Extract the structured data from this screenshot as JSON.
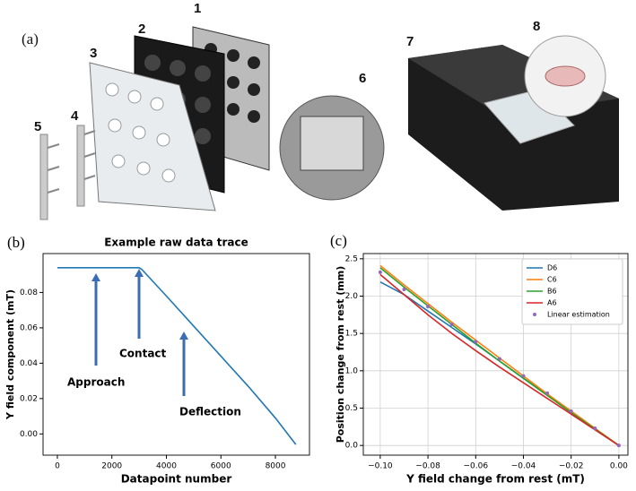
{
  "figure": {
    "panel_a": {
      "label": "(a)",
      "callouts": [
        "1",
        "2",
        "3",
        "4",
        "5",
        "6",
        "7",
        "8"
      ]
    }
  },
  "chart_data": [
    {
      "type": "line",
      "panel_label": "(b)",
      "title": "Example raw data trace",
      "x_label": "Datapoint number",
      "y_label": "Y field component (mT)",
      "x": [
        0,
        3000,
        3100,
        4000,
        5000,
        6000,
        7000,
        8000,
        8750
      ],
      "series": [
        {
          "name": null,
          "color": "#1f77b4",
          "values": [
            0.094,
            0.094,
            0.093,
            0.078,
            0.061,
            0.044,
            0.027,
            0.009,
            -0.006
          ]
        }
      ],
      "xlim": [
        -525,
        9250
      ],
      "ylim": [
        -0.012,
        0.102
      ],
      "xticks": [
        0,
        2000,
        4000,
        6000,
        8000
      ],
      "yticks": [
        {
          "value": 0,
          "label": "0.00"
        },
        0.02,
        0.04,
        0.06,
        0.08
      ],
      "grid": false,
      "annotations": [
        {
          "text": "Approach"
        },
        {
          "text": "Contact"
        },
        {
          "text": "Deflection"
        }
      ]
    },
    {
      "type": "line",
      "panel_label": "(c)",
      "x_label": "Y field change from rest (mT)",
      "y_label": "Position change from rest (mm)",
      "x": [
        -0.1,
        -0.09,
        -0.08,
        -0.07,
        -0.06,
        -0.05,
        -0.04,
        -0.03,
        -0.02,
        -0.01,
        0
      ],
      "series": [
        {
          "name": "D6",
          "color": "#1f77b4",
          "values": [
            2.19,
            2.02,
            1.8,
            1.58,
            1.36,
            1.13,
            0.9,
            0.68,
            0.45,
            0.22,
            0
          ]
        },
        {
          "name": "C6",
          "color": "#ff7f0e",
          "values": [
            2.41,
            2.15,
            1.9,
            1.65,
            1.41,
            1.17,
            0.93,
            0.69,
            0.46,
            0.23,
            0
          ]
        },
        {
          "name": "B6",
          "color": "#2ca02c",
          "values": [
            2.38,
            2.12,
            1.87,
            1.62,
            1.37,
            1.13,
            0.9,
            0.67,
            0.44,
            0.22,
            0
          ]
        },
        {
          "name": "A6",
          "color": "#d62728",
          "values": [
            2.29,
            2.02,
            1.75,
            1.5,
            1.27,
            1.05,
            0.84,
            0.63,
            0.42,
            0.21,
            0
          ]
        },
        {
          "name": "Linear estimation",
          "color": "#9467bd",
          "marker": "dots",
          "values": [
            2.32,
            2.09,
            1.86,
            1.62,
            1.39,
            1.16,
            0.93,
            0.7,
            0.46,
            0.23,
            0
          ]
        }
      ],
      "xlim": [
        -0.1071,
        0.0038
      ],
      "ylim": [
        -0.13,
        2.57
      ],
      "xticks": [
        {
          "value": -0.1,
          "label": "−0.10"
        },
        {
          "value": -0.08,
          "label": "−0.08"
        },
        {
          "value": -0.06,
          "label": "−0.06"
        },
        {
          "value": -0.04,
          "label": "−0.04"
        },
        {
          "value": -0.02,
          "label": "−0.02"
        },
        {
          "value": 0,
          "label": "0.00"
        }
      ],
      "yticks": [
        {
          "value": 0,
          "label": "0.0"
        },
        0.5,
        {
          "value": 1,
          "label": "1.0"
        },
        1.5,
        {
          "value": 2,
          "label": "2.0"
        },
        2.5
      ],
      "grid": true,
      "legend": "upper-right"
    }
  ]
}
